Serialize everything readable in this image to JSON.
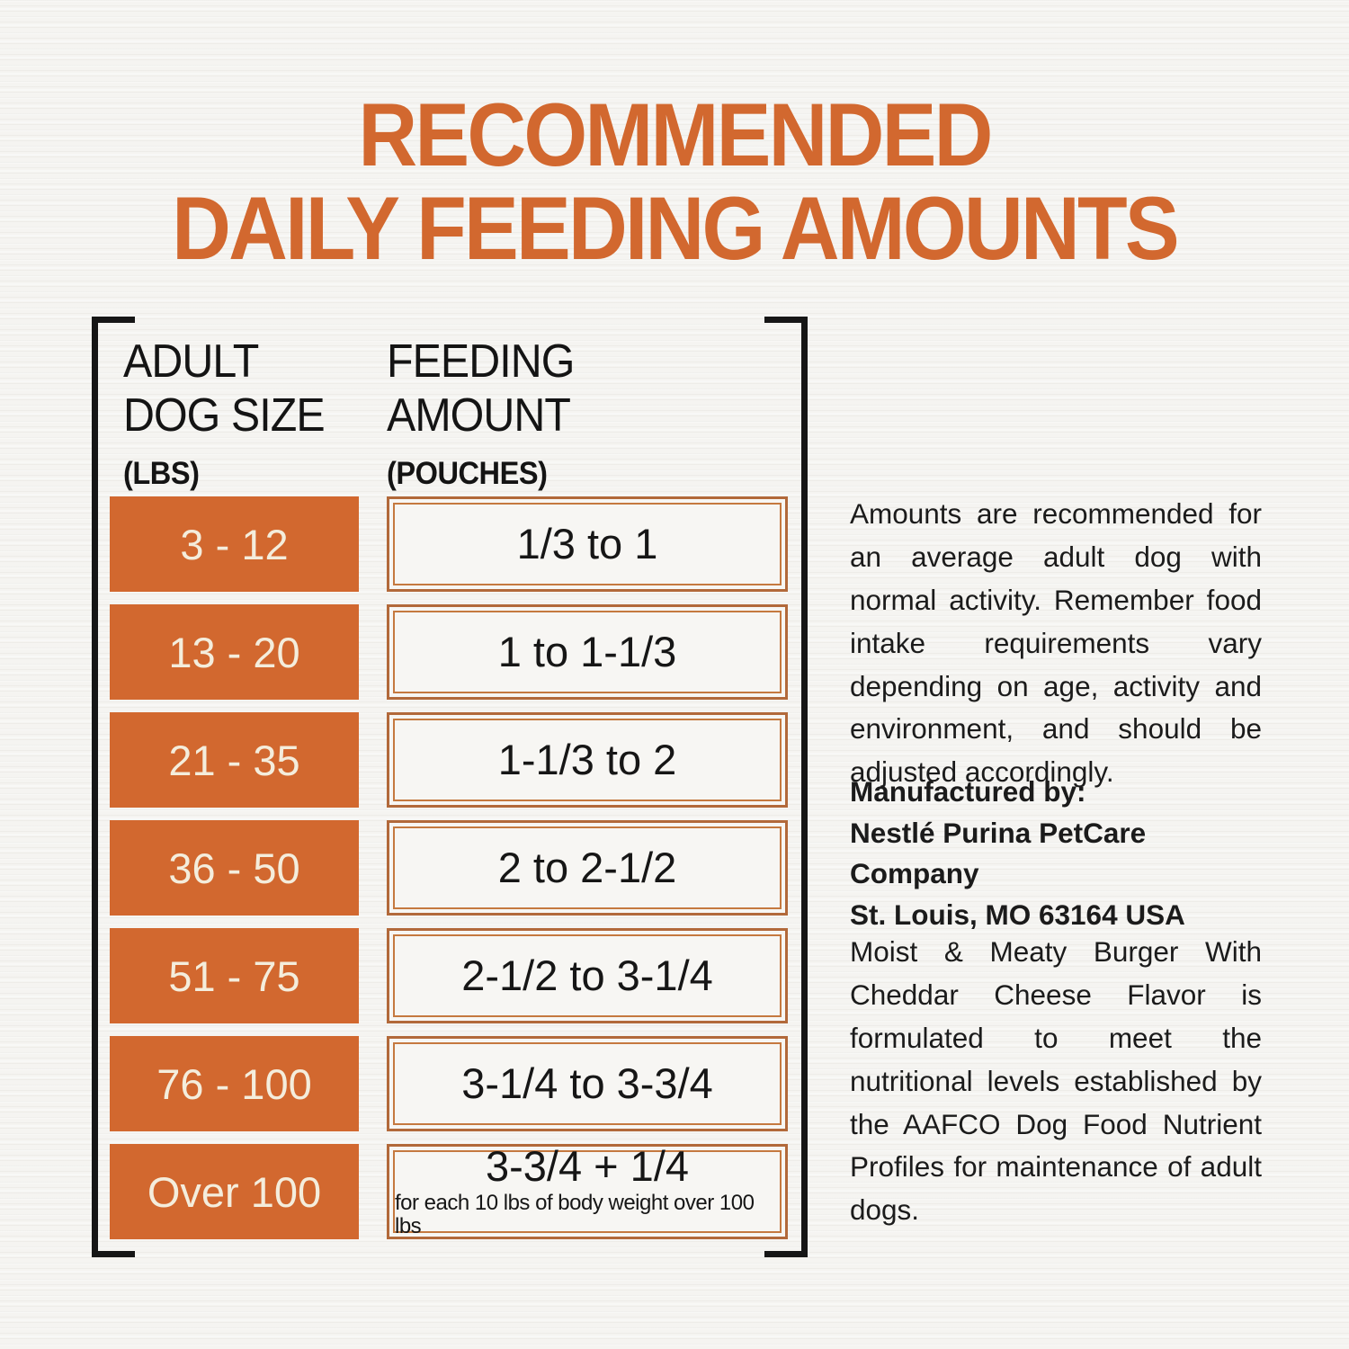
{
  "title": {
    "line1": "RECOMMENDED",
    "line2": "DAILY FEEDING AMOUNTS"
  },
  "table": {
    "size_header": {
      "line1": "ADULT",
      "line2": "DOG SIZE",
      "unit": "(LBS)"
    },
    "amount_header": {
      "line1": "FEEDING",
      "line2": "AMOUNT",
      "unit": "(POUCHES)"
    },
    "rows": [
      {
        "size": "3 - 12",
        "amount": "1/3 to 1"
      },
      {
        "size": "13 - 20",
        "amount": "1 to 1-1/3"
      },
      {
        "size": "21 - 35",
        "amount": "1-1/3 to 2"
      },
      {
        "size": "36 - 50",
        "amount": "2 to 2-1/2"
      },
      {
        "size": "51 - 75",
        "amount": "2-1/2 to 3-1/4"
      },
      {
        "size": "76 - 100",
        "amount": "3-1/4 to 3-3/4"
      },
      {
        "size": "Over 100",
        "amount": "3-3/4 + 1/4",
        "note": "for each 10 lbs of body weight over 100 lbs"
      }
    ]
  },
  "side": {
    "para1": "Amounts are recommended for an average adult dog with normal activity. Remember food intake requirements vary depending on age, activity and environment, and should be adjusted accordingly.",
    "manufacturer": {
      "label": "Manufactured by:",
      "company": "Nestlé Purina PetCare Company",
      "address": "St. Louis, MO 63164 USA"
    },
    "para2": "Moist & Meaty Burger With Cheddar Cheese Flavor is formulated to meet the nutritional levels established by the AAFCO Dog Food Nutrient Profiles for maintenance of adult dogs."
  },
  "colors": {
    "accent_orange": "#d2682f",
    "title_orange": "#d4662e",
    "box_frame_outer": "#b2693a",
    "box_frame_inner": "#c5793f",
    "bracket_ink": "#161616",
    "box_text_cream": "#f4eddc",
    "paper": "#f5f4f1"
  }
}
